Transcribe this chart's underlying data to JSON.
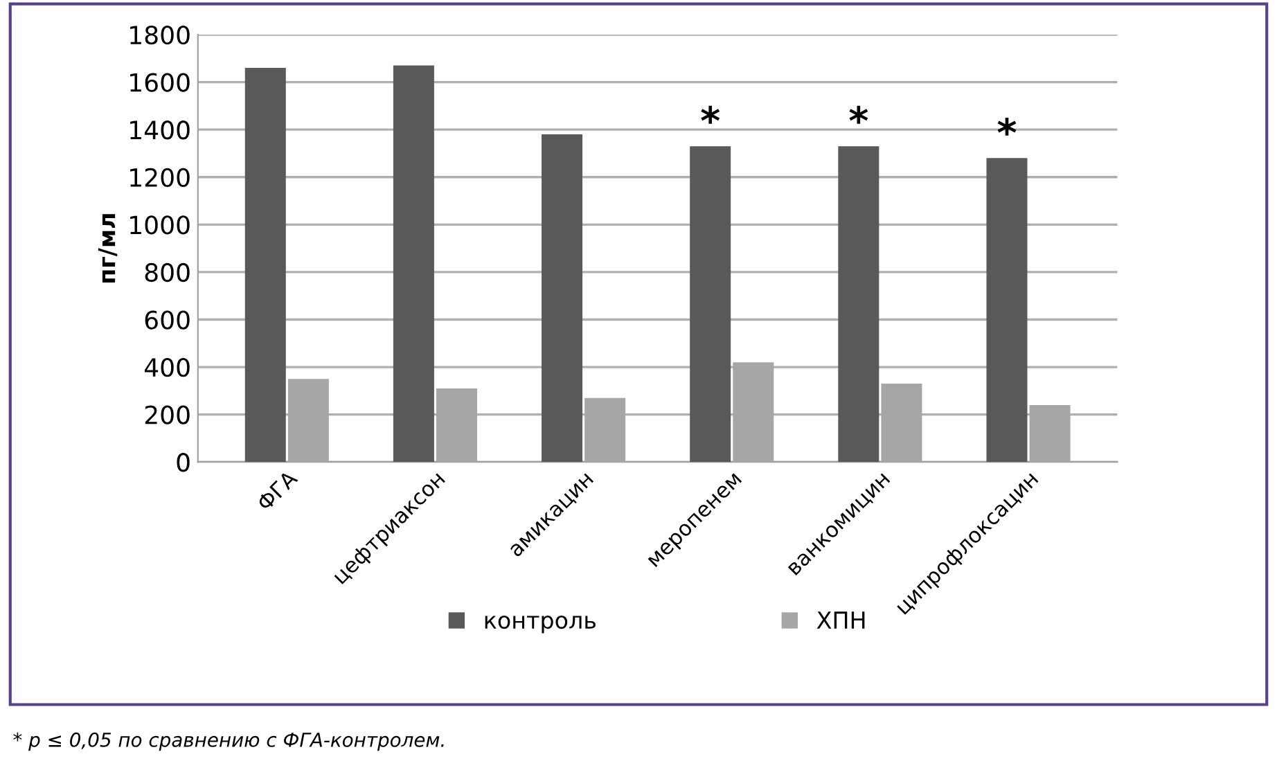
{
  "chart_data": {
    "type": "bar",
    "ylabel": "пг/мл",
    "categories": [
      "ФГА",
      "цефтриаксон",
      "амикацин",
      "меропенем",
      "ванкомицин",
      "ципрофлоксацин"
    ],
    "series": [
      {
        "name": "контроль",
        "color": "#595959",
        "values": [
          1660,
          1670,
          1380,
          1330,
          1330,
          1280
        ]
      },
      {
        "name": "ХПН",
        "color": "#a6a6a6",
        "values": [
          350,
          310,
          270,
          420,
          330,
          240
        ]
      }
    ],
    "ylim": [
      0,
      1800
    ],
    "yticks": [
      0,
      200,
      400,
      600,
      800,
      1000,
      1200,
      1400,
      1600,
      1800
    ],
    "grid": "y",
    "legend": "bottom",
    "annotations": [
      {
        "text": "*",
        "x": "меропенем",
        "y": 1330
      },
      {
        "text": "*",
        "x": "ванкомицин",
        "y": 1330
      },
      {
        "text": "*",
        "x": "ципрофлоксацин",
        "y": 1280
      },
      "* p ≤ 0,05 по сравнению с ФГА-контролем."
    ]
  }
}
